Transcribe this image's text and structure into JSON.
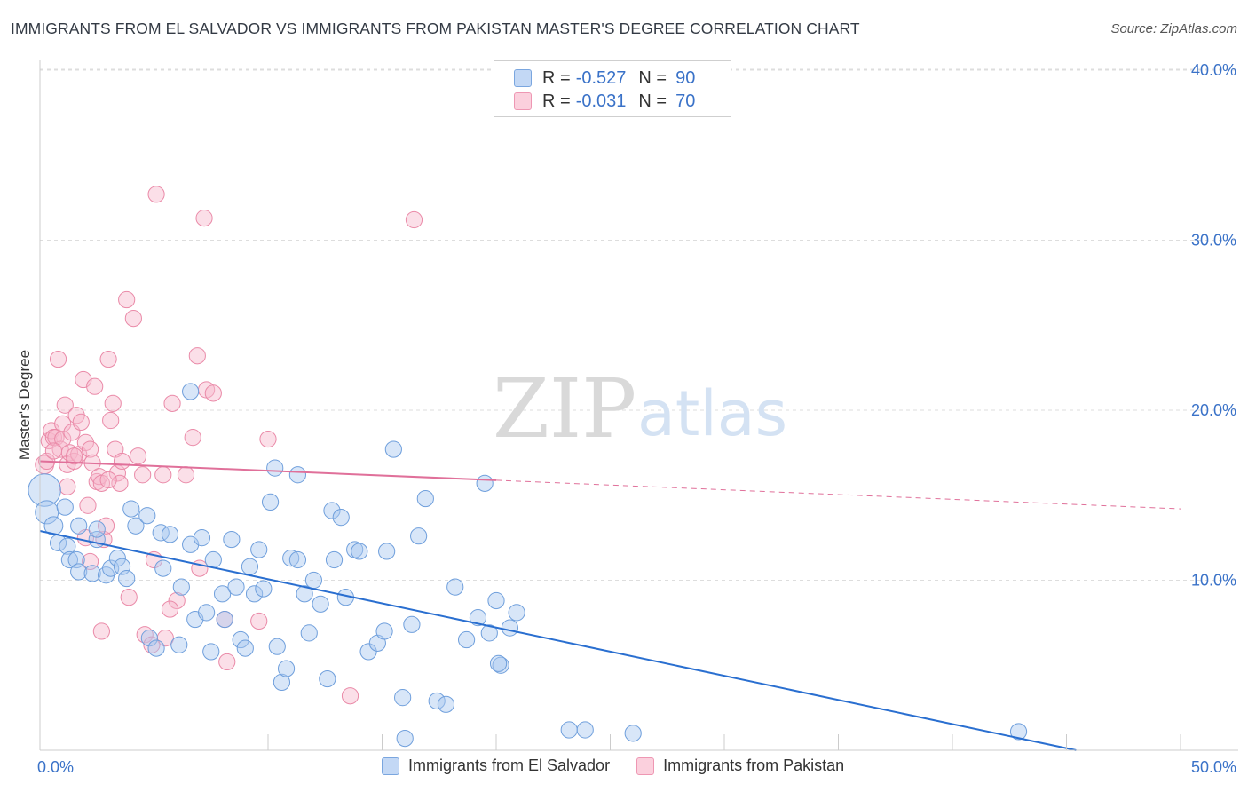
{
  "title": "IMMIGRANTS FROM EL SALVADOR VS IMMIGRANTS FROM PAKISTAN MASTER'S DEGREE CORRELATION CHART",
  "source": "Source: ZipAtlas.com",
  "watermark": {
    "part1": "ZIP",
    "part2": "atlas"
  },
  "colors": {
    "blue_fill": "#a9c8f0",
    "blue_stroke": "#6f9fdc",
    "blue_line": "#2a6fd0",
    "pink_fill": "#f6b8cb",
    "pink_stroke": "#ea8aa8",
    "pink_line": "#e0709a",
    "tick_label": "#3a72c8",
    "grid": "#dddddd"
  },
  "legend": {
    "rows": [
      {
        "r_label": "R =",
        "r_value": "-0.527",
        "n_label": "N =",
        "n_value": "90"
      },
      {
        "r_label": "R =",
        "r_value": "-0.031",
        "n_label": "N =",
        "n_value": "70"
      }
    ]
  },
  "bottom_legend": [
    "Immigrants from El Salvador",
    "Immigrants from Pakistan"
  ],
  "chart_data": {
    "type": "scatter",
    "title": "IMMIGRANTS FROM EL SALVADOR VS IMMIGRANTS FROM PAKISTAN MASTER'S DEGREE CORRELATION CHART",
    "xlabel": "",
    "ylabel": "Master's Degree",
    "xlim": [
      0,
      50
    ],
    "ylim": [
      0,
      40
    ],
    "x_tick_labels": [
      "0.0%",
      "50.0%"
    ],
    "y_ticks": [
      10,
      20,
      30,
      40
    ],
    "y_tick_labels": [
      "10.0%",
      "20.0%",
      "30.0%",
      "40.0%"
    ],
    "grid": true,
    "legend_position": "top-center",
    "series": [
      {
        "name": "Immigrants from El Salvador",
        "color": "blue",
        "r": -0.527,
        "n": 90,
        "trend": {
          "x": [
            0,
            50
          ],
          "y": [
            12.9,
            -1.3
          ],
          "dashed_from": null
        },
        "points": [
          [
            0.2,
            15.3,
            14
          ],
          [
            0.3,
            14.0,
            10
          ],
          [
            0.6,
            13.2,
            8
          ],
          [
            0.8,
            12.2,
            7
          ],
          [
            1.1,
            14.3,
            7
          ],
          [
            1.2,
            12.0,
            7
          ],
          [
            1.3,
            11.2,
            7
          ],
          [
            1.6,
            11.2,
            7
          ],
          [
            1.7,
            10.5,
            7
          ],
          [
            1.7,
            13.2,
            7
          ],
          [
            2.3,
            10.4,
            7
          ],
          [
            2.5,
            12.4,
            7
          ],
          [
            2.5,
            13.0,
            7
          ],
          [
            2.9,
            10.3,
            7
          ],
          [
            3.1,
            10.7,
            7
          ],
          [
            3.4,
            11.3,
            7
          ],
          [
            3.6,
            10.8,
            7
          ],
          [
            3.8,
            10.1,
            7
          ],
          [
            4.0,
            14.2,
            7
          ],
          [
            4.2,
            13.2,
            7
          ],
          [
            4.7,
            13.8,
            7
          ],
          [
            5.3,
            12.8,
            7
          ],
          [
            5.4,
            10.7,
            7
          ],
          [
            5.7,
            12.7,
            7
          ],
          [
            4.8,
            6.6,
            7
          ],
          [
            5.1,
            6.0,
            7
          ],
          [
            6.1,
            6.2,
            7
          ],
          [
            6.2,
            9.6,
            7
          ],
          [
            6.6,
            21.1,
            7
          ],
          [
            6.6,
            12.1,
            7
          ],
          [
            6.8,
            7.7,
            7
          ],
          [
            7.1,
            12.5,
            7
          ],
          [
            7.3,
            8.1,
            7
          ],
          [
            7.5,
            5.8,
            7
          ],
          [
            7.6,
            11.2,
            7
          ],
          [
            8.0,
            9.2,
            7
          ],
          [
            8.1,
            7.7,
            7
          ],
          [
            8.4,
            12.4,
            7
          ],
          [
            8.6,
            9.6,
            7
          ],
          [
            8.8,
            6.5,
            7
          ],
          [
            9.0,
            6.0,
            7
          ],
          [
            9.2,
            10.8,
            7
          ],
          [
            9.4,
            9.2,
            7
          ],
          [
            9.6,
            11.8,
            7
          ],
          [
            9.8,
            9.5,
            7
          ],
          [
            10.1,
            14.6,
            7
          ],
          [
            10.3,
            16.6,
            7
          ],
          [
            10.4,
            6.1,
            7
          ],
          [
            10.6,
            4.0,
            7
          ],
          [
            10.8,
            4.8,
            7
          ],
          [
            11.0,
            11.3,
            7
          ],
          [
            11.3,
            16.2,
            7
          ],
          [
            11.3,
            11.2,
            7
          ],
          [
            11.6,
            9.2,
            7
          ],
          [
            11.8,
            6.9,
            7
          ],
          [
            12.0,
            10.0,
            7
          ],
          [
            12.3,
            8.6,
            7
          ],
          [
            12.6,
            4.2,
            7
          ],
          [
            12.8,
            14.1,
            7
          ],
          [
            12.9,
            11.2,
            7
          ],
          [
            13.2,
            13.7,
            7
          ],
          [
            13.4,
            9.0,
            7
          ],
          [
            13.8,
            11.8,
            7
          ],
          [
            14.0,
            11.7,
            7
          ],
          [
            14.4,
            5.8,
            7
          ],
          [
            14.8,
            6.3,
            7
          ],
          [
            15.1,
            7.0,
            7
          ],
          [
            15.2,
            11.7,
            7
          ],
          [
            15.5,
            17.7,
            7
          ],
          [
            15.9,
            3.1,
            7
          ],
          [
            16.0,
            0.7,
            7
          ],
          [
            16.3,
            7.4,
            7
          ],
          [
            16.6,
            12.6,
            7
          ],
          [
            16.9,
            14.8,
            7
          ],
          [
            17.4,
            2.9,
            7
          ],
          [
            17.8,
            2.7,
            7
          ],
          [
            18.2,
            9.6,
            7
          ],
          [
            18.7,
            6.5,
            7
          ],
          [
            19.2,
            7.8,
            7
          ],
          [
            19.5,
            15.7,
            7
          ],
          [
            19.7,
            6.9,
            7
          ],
          [
            20.0,
            8.8,
            7
          ],
          [
            20.2,
            5.0,
            7
          ],
          [
            20.6,
            7.2,
            7
          ],
          [
            20.9,
            8.1,
            7
          ],
          [
            23.2,
            1.2,
            7
          ],
          [
            23.9,
            1.2,
            7
          ],
          [
            26.0,
            1.0,
            7
          ],
          [
            42.9,
            1.1,
            7
          ],
          [
            20.1,
            5.1,
            7
          ]
        ]
      },
      {
        "name": "Immigrants from Pakistan",
        "color": "pink",
        "r": -0.031,
        "n": 70,
        "trend": {
          "x": [
            0,
            50
          ],
          "y": [
            17.0,
            14.2
          ],
          "dashed_from": 20
        },
        "points": [
          [
            0.2,
            16.8,
            8
          ],
          [
            0.3,
            17.0,
            7
          ],
          [
            0.4,
            18.2,
            7
          ],
          [
            0.5,
            18.8,
            7
          ],
          [
            0.6,
            18.4,
            7
          ],
          [
            0.7,
            18.4,
            7
          ],
          [
            0.8,
            23.0,
            7
          ],
          [
            0.9,
            17.7,
            7
          ],
          [
            1.0,
            18.3,
            7
          ],
          [
            1.0,
            19.2,
            7
          ],
          [
            1.1,
            20.3,
            7
          ],
          [
            1.2,
            16.8,
            7
          ],
          [
            1.3,
            17.5,
            7
          ],
          [
            1.4,
            18.7,
            7
          ],
          [
            1.5,
            17.0,
            7
          ],
          [
            1.6,
            19.7,
            7
          ],
          [
            1.7,
            17.4,
            7
          ],
          [
            1.8,
            19.3,
            7
          ],
          [
            1.9,
            21.8,
            7
          ],
          [
            2.0,
            18.1,
            7
          ],
          [
            2.1,
            14.4,
            7
          ],
          [
            2.2,
            17.7,
            7
          ],
          [
            2.3,
            16.9,
            7
          ],
          [
            2.4,
            21.4,
            7
          ],
          [
            2.5,
            15.8,
            7
          ],
          [
            2.6,
            16.1,
            7
          ],
          [
            2.7,
            15.7,
            7
          ],
          [
            2.8,
            12.4,
            7
          ],
          [
            3.0,
            23.0,
            7
          ],
          [
            3.1,
            19.4,
            7
          ],
          [
            3.2,
            20.4,
            7
          ],
          [
            3.3,
            17.7,
            7
          ],
          [
            3.4,
            16.3,
            7
          ],
          [
            3.6,
            17.0,
            7
          ],
          [
            3.8,
            26.5,
            7
          ],
          [
            4.1,
            25.4,
            7
          ],
          [
            4.3,
            17.3,
            7
          ],
          [
            4.5,
            16.2,
            7
          ],
          [
            5.0,
            11.2,
            7
          ],
          [
            5.1,
            32.7,
            7
          ],
          [
            5.4,
            16.2,
            7
          ],
          [
            5.5,
            6.6,
            7
          ],
          [
            5.8,
            20.4,
            7
          ],
          [
            6.0,
            8.8,
            7
          ],
          [
            6.7,
            18.4,
            7
          ],
          [
            6.9,
            23.2,
            7
          ],
          [
            7.0,
            10.7,
            7
          ],
          [
            7.2,
            31.3,
            7
          ],
          [
            7.3,
            21.2,
            7
          ],
          [
            7.6,
            21.0,
            7
          ],
          [
            8.1,
            7.7,
            7
          ],
          [
            8.2,
            5.2,
            7
          ],
          [
            9.6,
            7.6,
            7
          ],
          [
            10.0,
            18.3,
            7
          ],
          [
            13.6,
            3.2,
            7
          ],
          [
            16.4,
            31.2,
            7
          ],
          [
            2.0,
            12.5,
            7
          ],
          [
            2.2,
            11.1,
            7
          ],
          [
            2.7,
            7.0,
            7
          ],
          [
            3.9,
            9.0,
            7
          ],
          [
            4.6,
            6.8,
            7
          ],
          [
            1.5,
            17.3,
            7
          ],
          [
            0.6,
            17.6,
            7
          ],
          [
            2.9,
            13.2,
            7
          ],
          [
            3.5,
            15.7,
            7
          ],
          [
            3.0,
            15.9,
            7
          ],
          [
            4.9,
            6.2,
            7
          ],
          [
            6.4,
            16.2,
            7
          ],
          [
            5.7,
            8.3,
            7
          ],
          [
            1.2,
            15.5,
            7
          ]
        ]
      }
    ]
  }
}
